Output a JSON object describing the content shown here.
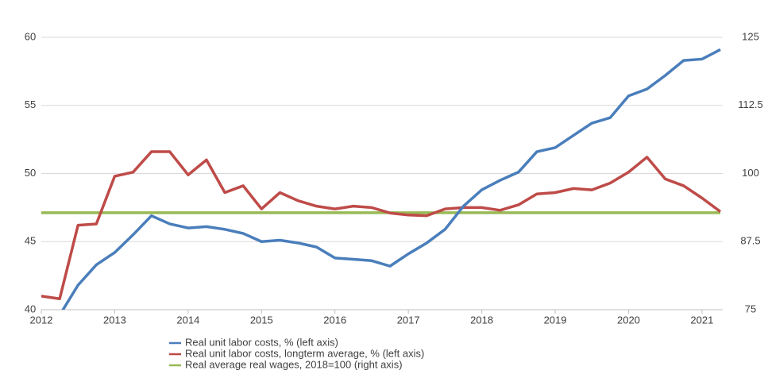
{
  "chart_data": {
    "type": "line",
    "x": [
      2012,
      2012.25,
      2012.5,
      2012.75,
      2013,
      2013.25,
      2013.5,
      2013.75,
      2014,
      2014.25,
      2014.5,
      2014.75,
      2015,
      2015.25,
      2015.5,
      2015.75,
      2016,
      2016.25,
      2016.5,
      2016.75,
      2017,
      2017.25,
      2017.5,
      2017.75,
      2018,
      2018.25,
      2018.5,
      2018.75,
      2019,
      2019.25,
      2019.5,
      2019.75,
      2020,
      2020.25,
      2020.5,
      2020.75,
      2021,
      2021.25
    ],
    "series": [
      {
        "name": "Real unit labor costs, % (left axis)",
        "color": "#4a7ebb",
        "values": [
          null,
          39.6,
          41.8,
          43.3,
          44.2,
          45.5,
          46.9,
          46.3,
          46.0,
          46.1,
          45.9,
          45.6,
          45.0,
          45.1,
          44.9,
          44.6,
          43.8,
          43.7,
          43.6,
          43.2,
          44.1,
          44.9,
          45.9,
          47.6,
          48.8,
          49.5,
          50.1,
          51.6,
          51.9,
          52.8,
          53.7,
          54.1,
          55.7,
          56.2,
          57.2,
          58.3,
          58.4,
          59.1
        ]
      },
      {
        "name": "Real unit labor costs, longterm average, % (left axis)",
        "color": "#be4b48",
        "values": [
          41.0,
          40.8,
          46.2,
          46.3,
          49.8,
          50.1,
          51.6,
          51.6,
          49.9,
          51.0,
          48.6,
          49.1,
          47.4,
          48.6,
          48.0,
          47.6,
          47.4,
          47.6,
          47.5,
          47.1,
          46.95,
          46.9,
          47.4,
          47.5,
          47.5,
          47.3,
          47.7,
          48.5,
          48.6,
          48.9,
          48.8,
          49.3,
          50.1,
          51.2,
          49.6,
          49.1,
          48.2,
          47.2
        ]
      },
      {
        "name": "Real average real wages, 2018=100 (right axis)",
        "color": "#98b954",
        "axis": "y2",
        "values": [
          92.8,
          92.8,
          92.8,
          92.8,
          92.8,
          92.8,
          92.8,
          92.8,
          92.8,
          92.8,
          92.8,
          92.8,
          92.8,
          92.8,
          92.8,
          92.8,
          92.8,
          92.8,
          92.8,
          92.8,
          92.8,
          92.8,
          92.8,
          92.8,
          92.8,
          92.8,
          92.8,
          92.8,
          92.8,
          92.8,
          92.8,
          92.8,
          92.8,
          92.8,
          92.8,
          92.8,
          92.8,
          92.8
        ]
      }
    ],
    "xlim": [
      2012,
      2021.25
    ],
    "xticks": [
      2012,
      2013,
      2014,
      2015,
      2016,
      2017,
      2018,
      2019,
      2020,
      2021
    ],
    "ylim": [
      40,
      60
    ],
    "yticks": [
      40,
      45,
      50,
      55,
      60
    ],
    "y2lim": [
      75,
      125
    ],
    "y2ticks": [
      75,
      87.5,
      100,
      112.5,
      125
    ],
    "grid": true,
    "legend": "bottom"
  }
}
